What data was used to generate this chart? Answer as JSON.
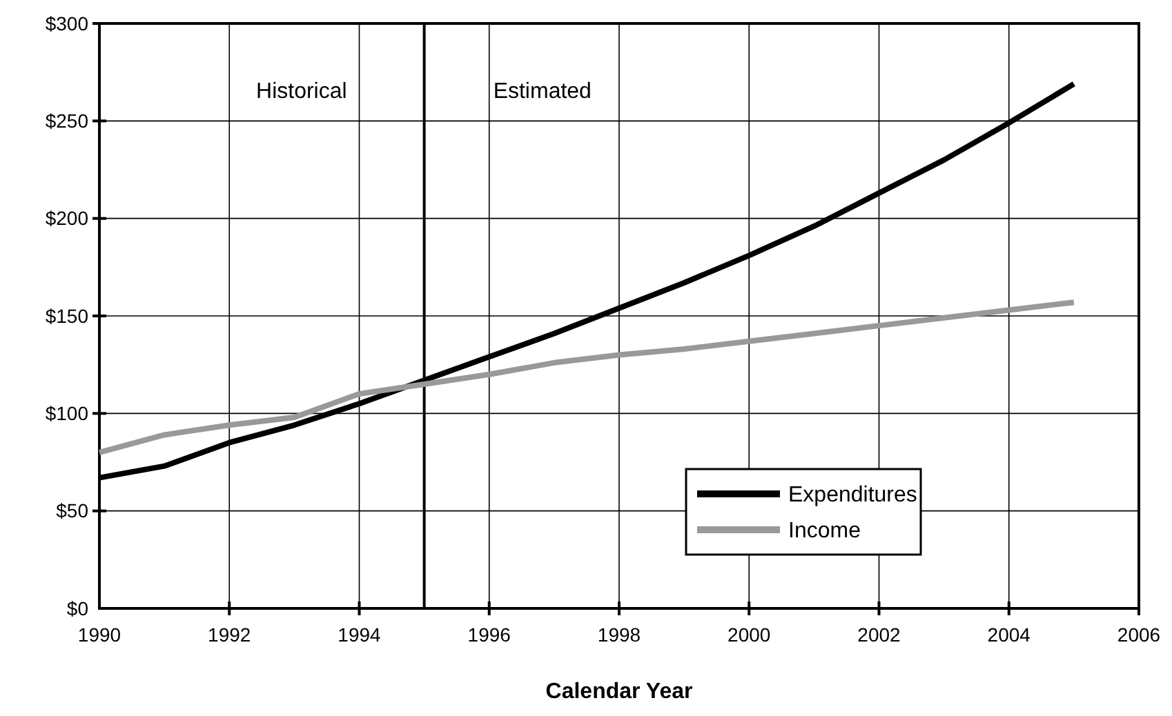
{
  "chart_data": {
    "type": "line",
    "xlabel": "Calendar Year",
    "x": [
      1990,
      1991,
      1992,
      1993,
      1994,
      1995,
      1996,
      1997,
      1998,
      1999,
      2000,
      2001,
      2002,
      2003,
      2004,
      2005
    ],
    "series": [
      {
        "name": "Expenditures",
        "color": "#000000",
        "values": [
          67,
          73,
          85,
          94,
          105,
          117,
          129,
          141,
          154,
          167,
          181,
          196,
          213,
          230,
          249,
          269
        ]
      },
      {
        "name": "Income",
        "color": "#999999",
        "values": [
          80,
          89,
          94,
          98,
          110,
          115,
          120,
          126,
          130,
          133,
          137,
          141,
          145,
          149,
          153,
          157
        ]
      }
    ],
    "xlim": [
      1990,
      2006
    ],
    "xticks": [
      1990,
      1992,
      1994,
      1996,
      1998,
      2000,
      2002,
      2004,
      2006
    ],
    "ylim": [
      0,
      300
    ],
    "yticks": [
      {
        "value": 0,
        "label": "$0"
      },
      {
        "value": 50,
        "label": "$50"
      },
      {
        "value": 100,
        "label": "$100"
      },
      {
        "value": 150,
        "label": "$150"
      },
      {
        "value": 200,
        "label": "$200"
      },
      {
        "value": 250,
        "label": "$250"
      },
      {
        "value": 300,
        "label": "$300"
      }
    ],
    "grid": true,
    "legend": "bottom right",
    "marker": "none",
    "line_style": "solid",
    "ref_lines": [
      {
        "axis": "x",
        "value": 1995,
        "color": "#000000"
      }
    ],
    "annotations": [
      "Historical",
      "Estimated"
    ]
  }
}
